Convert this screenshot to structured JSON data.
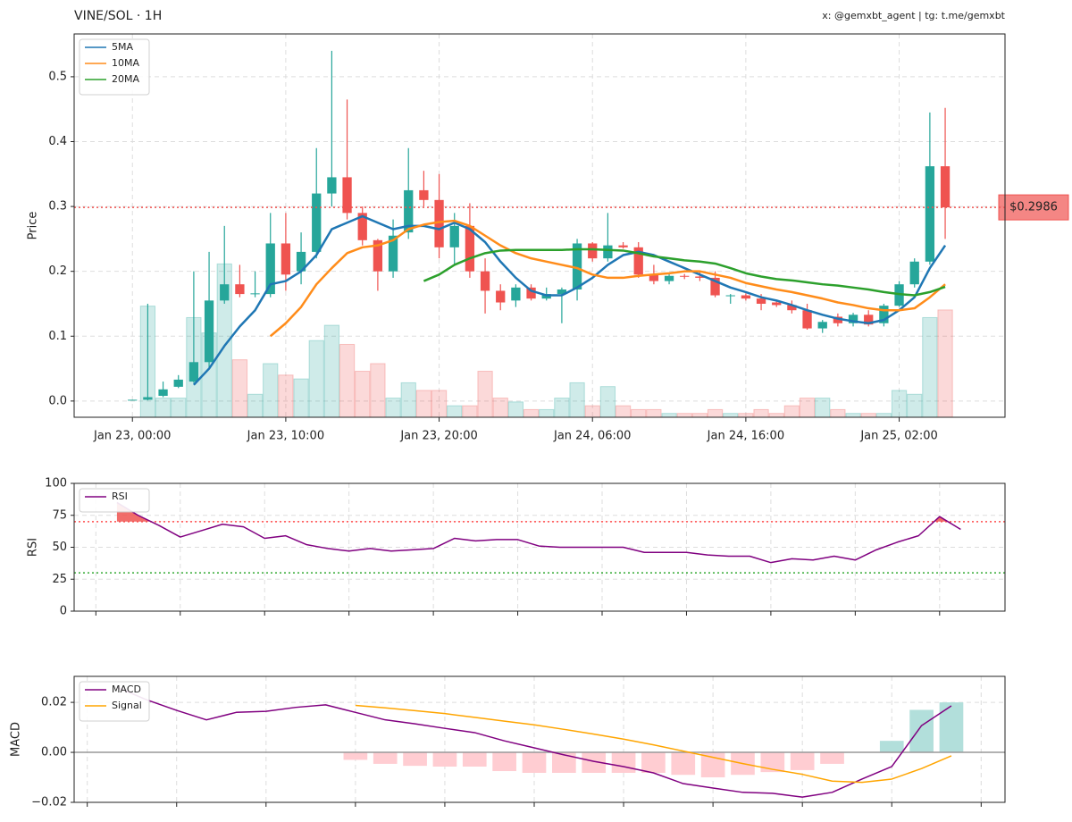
{
  "header": {
    "title": "VINE/SOL · 1H",
    "credit": "x: @gemxbt_agent | tg: t.me/gemxbt"
  },
  "chart_data": [
    {
      "type": "candlestick",
      "ylabel": "Price",
      "xlim": [
        -3.8,
        56.9
      ],
      "xticks": [
        {
          "value": 0,
          "label": "Jan 23, 00:00"
        },
        {
          "value": 10,
          "label": "Jan 23, 10:00"
        },
        {
          "value": 20,
          "label": "Jan 23, 20:00"
        },
        {
          "value": 30,
          "label": "Jan 24, 06:00"
        },
        {
          "value": 40,
          "label": "Jan 24, 16:00"
        },
        {
          "value": 50,
          "label": "Jan 25, 02:00"
        }
      ],
      "ylim": [
        -0.025,
        0.566
      ],
      "yticks": [
        {
          "value": 0,
          "label": "0.0"
        },
        0.1,
        0.2,
        0.3,
        0.4,
        0.5
      ],
      "grid": true,
      "legend": "upper left",
      "up_color": "#26a69a",
      "down_color": "#ef5350",
      "open": [
        0.001,
        0.002,
        0.008,
        0.022,
        0.03,
        0.06,
        0.155,
        0.18,
        0.165,
        0.165,
        0.243,
        0.2,
        0.23,
        0.32,
        0.345,
        0.29,
        0.248,
        0.2,
        0.26,
        0.325,
        0.31,
        0.237,
        0.27,
        0.2,
        0.17,
        0.155,
        0.175,
        0.158,
        0.165,
        0.172,
        0.243,
        0.22,
        0.24,
        0.237,
        0.195,
        0.185,
        0.193,
        0.192,
        0.19,
        0.162,
        0.163,
        0.158,
        0.152,
        0.148,
        0.14,
        0.112,
        0.13,
        0.12,
        0.133,
        0.12,
        0.147,
        0.18,
        0.215,
        0.362
      ],
      "high": [
        0.002,
        0.15,
        0.03,
        0.04,
        0.2,
        0.23,
        0.27,
        0.21,
        0.2,
        0.29,
        0.29,
        0.26,
        0.39,
        0.54,
        0.465,
        0.3,
        0.25,
        0.28,
        0.39,
        0.355,
        0.35,
        0.29,
        0.305,
        0.22,
        0.18,
        0.18,
        0.18,
        0.175,
        0.175,
        0.25,
        0.245,
        0.29,
        0.245,
        0.245,
        0.21,
        0.197,
        0.196,
        0.2,
        0.2,
        0.165,
        0.166,
        0.165,
        0.155,
        0.155,
        0.15,
        0.125,
        0.135,
        0.136,
        0.14,
        0.15,
        0.185,
        0.22,
        0.445,
        0.452
      ],
      "low": [
        0.001,
        0.001,
        0.006,
        0.02,
        0.028,
        0.05,
        0.15,
        0.16,
        0.16,
        0.16,
        0.17,
        0.18,
        0.22,
        0.3,
        0.28,
        0.24,
        0.17,
        0.19,
        0.25,
        0.3,
        0.22,
        0.21,
        0.19,
        0.135,
        0.14,
        0.145,
        0.155,
        0.155,
        0.12,
        0.155,
        0.215,
        0.215,
        0.235,
        0.19,
        0.18,
        0.18,
        0.188,
        0.185,
        0.16,
        0.15,
        0.155,
        0.14,
        0.145,
        0.135,
        0.11,
        0.105,
        0.115,
        0.115,
        0.115,
        0.115,
        0.145,
        0.175,
        0.21,
        0.25
      ],
      "close": [
        0.002,
        0.006,
        0.018,
        0.033,
        0.06,
        0.155,
        0.18,
        0.165,
        0.166,
        0.243,
        0.195,
        0.23,
        0.32,
        0.345,
        0.29,
        0.248,
        0.2,
        0.255,
        0.325,
        0.31,
        0.237,
        0.27,
        0.2,
        0.17,
        0.152,
        0.175,
        0.158,
        0.165,
        0.172,
        0.243,
        0.22,
        0.24,
        0.237,
        0.195,
        0.185,
        0.193,
        0.192,
        0.19,
        0.163,
        0.163,
        0.158,
        0.15,
        0.148,
        0.14,
        0.112,
        0.122,
        0.12,
        0.133,
        0.118,
        0.147,
        0.18,
        0.215,
        0.362,
        0.2986
      ],
      "volume_lim": [
        0,
        100
      ],
      "volume": [
        0,
        29,
        5,
        5,
        26,
        22,
        40,
        15,
        6,
        14,
        11,
        10,
        20,
        24,
        19,
        12,
        14,
        5,
        9,
        7,
        7,
        3,
        3,
        12,
        5,
        4,
        2,
        2,
        5,
        9,
        3,
        8,
        3,
        2,
        2,
        1,
        1,
        1,
        2,
        1,
        1,
        2,
        1,
        3,
        5,
        5,
        2,
        1,
        1,
        1,
        7,
        6,
        26,
        28
      ],
      "series": [
        {
          "name": "5MA",
          "color": "#1f77b4",
          "values": [
            null,
            null,
            null,
            null,
            0.025,
            0.05,
            0.085,
            0.115,
            0.14,
            0.18,
            0.185,
            0.2,
            0.225,
            0.265,
            0.275,
            0.285,
            0.275,
            0.265,
            0.27,
            0.27,
            0.265,
            0.275,
            0.265,
            0.245,
            0.215,
            0.19,
            0.17,
            0.163,
            0.163,
            0.175,
            0.19,
            0.21,
            0.225,
            0.23,
            0.225,
            0.215,
            0.205,
            0.195,
            0.185,
            0.175,
            0.168,
            0.16,
            0.155,
            0.148,
            0.14,
            0.133,
            0.127,
            0.123,
            0.12,
            0.125,
            0.14,
            0.16,
            0.205,
            0.24
          ]
        },
        {
          "name": "10MA",
          "color": "#ff8c1a",
          "values": [
            null,
            null,
            null,
            null,
            null,
            null,
            null,
            null,
            null,
            0.1,
            0.12,
            0.145,
            0.18,
            0.205,
            0.228,
            0.237,
            0.24,
            0.248,
            0.265,
            0.272,
            0.276,
            0.278,
            0.27,
            0.255,
            0.24,
            0.228,
            0.22,
            0.215,
            0.21,
            0.205,
            0.195,
            0.19,
            0.19,
            0.193,
            0.195,
            0.197,
            0.2,
            0.2,
            0.195,
            0.19,
            0.182,
            0.177,
            0.172,
            0.168,
            0.163,
            0.158,
            0.152,
            0.148,
            0.143,
            0.14,
            0.14,
            0.143,
            0.16,
            0.18
          ]
        },
        {
          "name": "20MA",
          "color": "#2ca02c",
          "values": [
            null,
            null,
            null,
            null,
            null,
            null,
            null,
            null,
            null,
            null,
            null,
            null,
            null,
            null,
            null,
            null,
            null,
            null,
            null,
            0.185,
            0.195,
            0.21,
            0.22,
            0.228,
            0.232,
            0.233,
            0.233,
            0.233,
            0.233,
            0.234,
            0.234,
            0.233,
            0.232,
            0.228,
            0.223,
            0.22,
            0.217,
            0.215,
            0.212,
            0.205,
            0.197,
            0.192,
            0.188,
            0.186,
            0.183,
            0.18,
            0.178,
            0.175,
            0.172,
            0.168,
            0.165,
            0.163,
            0.168,
            0.176
          ]
        }
      ],
      "current_price": 0.2986,
      "current_price_label": "$0.2986",
      "current_price_color": "#ef5350"
    },
    {
      "type": "line",
      "ylabel": "RSI",
      "xlim": [
        -2.03,
        42.1
      ],
      "xticks": [
        -1,
        3,
        7,
        11,
        15,
        19,
        23,
        27,
        31,
        35,
        39
      ],
      "ylim": [
        0,
        100
      ],
      "yticks": [
        0,
        25,
        50,
        75,
        100
      ],
      "grid": true,
      "legend": "upper left",
      "levels": [
        {
          "value": 70,
          "color": "#ff4d4d"
        },
        {
          "value": 30,
          "color": "#33aa33"
        }
      ],
      "overbought_fill": 70,
      "fill_color": "#ef5350",
      "series": [
        {
          "name": "RSI",
          "color": "#800080",
          "values": [
            85,
            75,
            67,
            58,
            63,
            68,
            66,
            57,
            59,
            52,
            49,
            47,
            49,
            47,
            48,
            49,
            57,
            55,
            56,
            56,
            51,
            50,
            50,
            50,
            50,
            46,
            46,
            46,
            44,
            43,
            43,
            38,
            41,
            40,
            43,
            40,
            48,
            54,
            59,
            74,
            64
          ]
        }
      ]
    },
    {
      "type": "line",
      "ylabel": "MACD",
      "xlim": [
        -1.44,
        29.8
      ],
      "xticks": [
        -1,
        2,
        5,
        8,
        11,
        14,
        17,
        20,
        23,
        26,
        29
      ],
      "ylim": [
        -0.02,
        0.0304
      ],
      "yticks": [
        {
          "value": -0.02,
          "label": "−0.02"
        },
        {
          "value": 0,
          "label": "0.00"
        },
        0.02
      ],
      "grid": true,
      "legend": "upper left",
      "zero_line": 0,
      "histogram": [
        null,
        null,
        null,
        null,
        null,
        null,
        null,
        null,
        -0.003,
        -0.0046,
        -0.0054,
        -0.0057,
        -0.0057,
        -0.0075,
        -0.0082,
        -0.0082,
        -0.0082,
        -0.0082,
        -0.0082,
        -0.009,
        -0.01,
        -0.009,
        -0.0079,
        -0.0071,
        -0.0046,
        0,
        0.0046,
        0.017,
        0.02
      ],
      "up_color": "#b2dfdb",
      "down_color": "#ffcdd2",
      "series": [
        {
          "name": "MACD",
          "color": "#800080",
          "values": [
            0.026,
            0.021,
            0.0168,
            0.013,
            0.016,
            0.0164,
            0.018,
            0.019,
            0.016,
            0.013,
            0.0114,
            0.0096,
            0.0079,
            0.0046,
            0.0018,
            -0.001,
            -0.0036,
            -0.0057,
            -0.0082,
            -0.0125,
            -0.0143,
            -0.016,
            -0.0164,
            -0.0179,
            -0.016,
            -0.0107,
            -0.0057,
            0.0107,
            0.0186
          ]
        },
        {
          "name": "Signal",
          "color": "#ffa500",
          "values": [
            null,
            null,
            null,
            null,
            null,
            null,
            null,
            null,
            0.0188,
            0.0178,
            0.0167,
            0.0155,
            0.014,
            0.0125,
            0.011,
            0.0092,
            0.0073,
            0.0053,
            0.003,
            0.0005,
            -0.002,
            -0.0045,
            -0.0068,
            -0.0088,
            -0.0115,
            -0.012,
            -0.0107,
            -0.0065,
            -0.0014
          ]
        }
      ]
    }
  ]
}
